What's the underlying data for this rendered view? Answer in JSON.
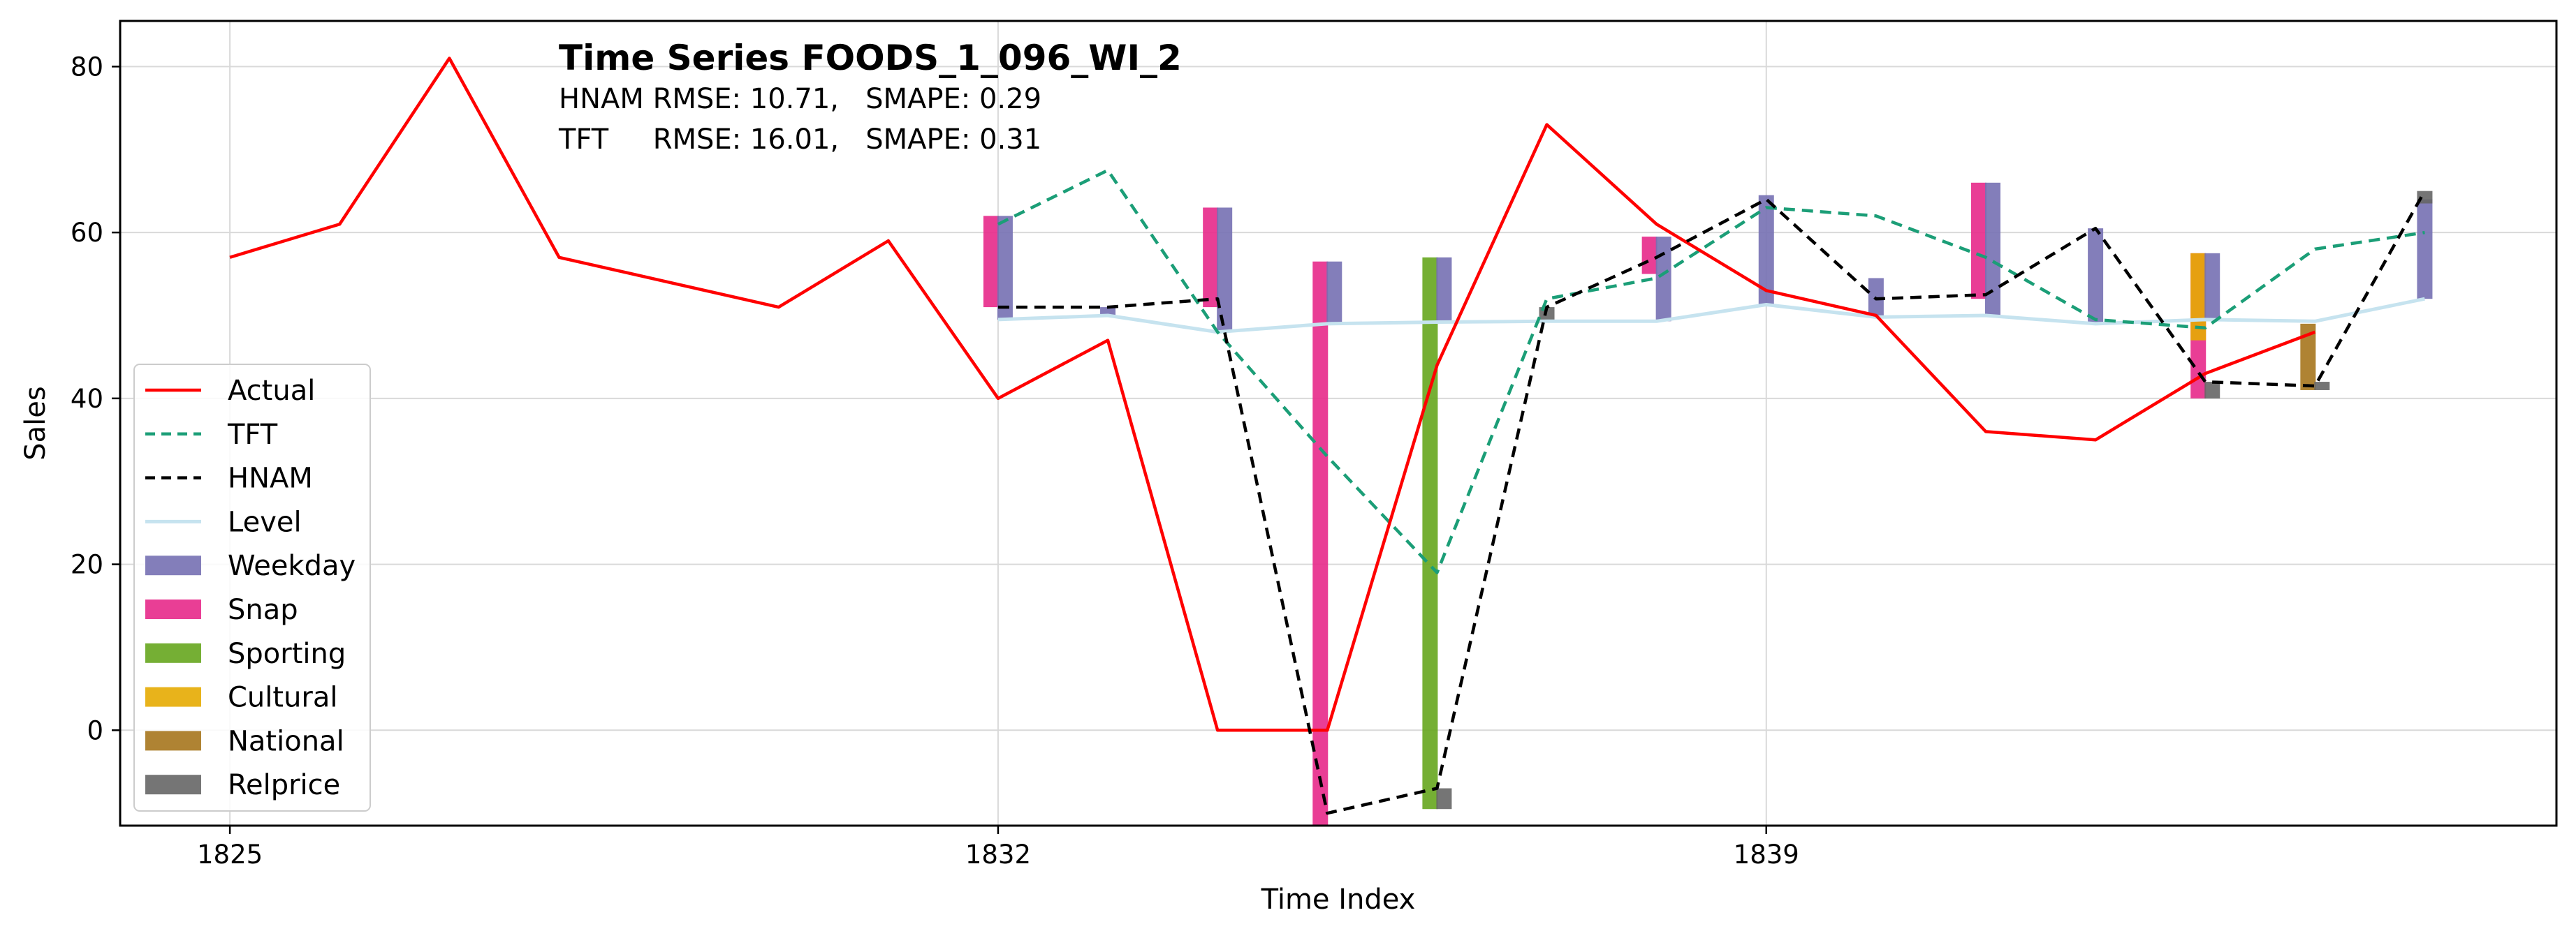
{
  "chart_data": {
    "type": "line",
    "title": "Time Series FOODS_1_096_WI_2",
    "metrics": [
      {
        "model": "HNAM",
        "text": "HNAM RMSE: 10.71,   SMAPE: 0.29"
      },
      {
        "model": "TFT",
        "text": "TFT     RMSE: 16.01,   SMAPE: 0.31"
      }
    ],
    "xlabel": "Time Index",
    "ylabel": "Sales",
    "xlim": [
      1824,
      1846.2
    ],
    "ylim": [
      -11.5,
      85.5
    ],
    "x_ticks": [
      1825,
      1832,
      1839
    ],
    "y_ticks": [
      0,
      20,
      40,
      60,
      80
    ],
    "grid": true,
    "legend_position": "lower-left",
    "series": [
      {
        "name": "Actual",
        "style": "solid",
        "color": "#ff0000",
        "x": [
          1825,
          1826,
          1827,
          1828,
          1829,
          1830,
          1831,
          1832,
          1833,
          1834,
          1835,
          1836,
          1837,
          1838,
          1839,
          1840,
          1841,
          1842,
          1843,
          1844,
          1845
        ],
        "values": [
          57,
          61,
          81,
          57,
          54,
          51,
          59,
          40,
          47,
          0,
          0,
          44,
          73,
          61,
          53,
          50,
          36,
          35,
          43,
          48,
          null
        ]
      },
      {
        "name": "TFT",
        "style": "dashed",
        "color": "#1b9e77",
        "x": [
          1832,
          1833,
          1834,
          1835,
          1836,
          1837,
          1838,
          1839,
          1840,
          1841,
          1842,
          1843,
          1844,
          1845
        ],
        "values": [
          61,
          67.5,
          48,
          33,
          19,
          52,
          54.5,
          63,
          62,
          57,
          49.5,
          48.5,
          58,
          60
        ]
      },
      {
        "name": "HNAM",
        "style": "dashed",
        "color": "#000000",
        "x": [
          1832,
          1833,
          1834,
          1835,
          1836,
          1837,
          1838,
          1839,
          1840,
          1841,
          1842,
          1843,
          1844,
          1845
        ],
        "values": [
          51,
          51,
          52,
          -10,
          -7,
          51,
          57,
          64,
          52,
          52.5,
          60.5,
          42,
          41.5,
          65
        ]
      },
      {
        "name": "Level",
        "style": "solid",
        "color": "#c6e3ef",
        "x": [
          1832,
          1833,
          1834,
          1835,
          1836,
          1837,
          1838,
          1839,
          1840,
          1841,
          1842,
          1843,
          1844,
          1845
        ],
        "values": [
          49.5,
          50,
          48,
          49,
          49.2,
          49.3,
          49.3,
          51.3,
          49.8,
          50,
          49,
          49.5,
          49.3,
          52
        ]
      }
    ],
    "components": {
      "colors": {
        "Weekday": "#7570b3",
        "Snap": "#e7298a",
        "Sporting": "#66a61e",
        "Cultural": "#e6ab02",
        "National": "#a6761d",
        "Relprice": "#666666"
      },
      "bars": [
        {
          "x": 1832,
          "name": "Snap",
          "from": 51,
          "to": 62
        },
        {
          "x": 1832,
          "name": "Weekday",
          "from": 49.5,
          "to": 62
        },
        {
          "x": 1833,
          "name": "Weekday",
          "from": 50,
          "to": 51
        },
        {
          "x": 1834,
          "name": "Snap",
          "from": 51,
          "to": 63
        },
        {
          "x": 1834,
          "name": "Weekday",
          "from": 48,
          "to": 63
        },
        {
          "x": 1835,
          "name": "Snap",
          "from": -11.5,
          "to": 56.5
        },
        {
          "x": 1835,
          "name": "Weekday",
          "from": 49,
          "to": 56.5
        },
        {
          "x": 1836,
          "name": "Sporting",
          "from": -9.5,
          "to": 57
        },
        {
          "x": 1836,
          "name": "Weekday",
          "from": 49.2,
          "to": 57
        },
        {
          "x": 1836,
          "name": "Relprice",
          "from": -9.5,
          "to": -7
        },
        {
          "x": 1837,
          "name": "Relprice",
          "from": 49.3,
          "to": 51
        },
        {
          "x": 1838,
          "name": "Snap",
          "from": 55,
          "to": 59.5
        },
        {
          "x": 1838,
          "name": "Weekday",
          "from": 49.3,
          "to": 59.5
        },
        {
          "x": 1839,
          "name": "Weekday",
          "from": 51.3,
          "to": 64.5
        },
        {
          "x": 1840,
          "name": "Weekday",
          "from": 49.8,
          "to": 54.5
        },
        {
          "x": 1841,
          "name": "Snap",
          "from": 52,
          "to": 66
        },
        {
          "x": 1841,
          "name": "Weekday",
          "from": 50,
          "to": 66
        },
        {
          "x": 1842,
          "name": "Weekday",
          "from": 49,
          "to": 60.5
        },
        {
          "x": 1843,
          "name": "Snap",
          "from": 40,
          "to": 57.5
        },
        {
          "x": 1843,
          "name": "Cultural",
          "from": 47,
          "to": 57.5
        },
        {
          "x": 1843,
          "name": "Weekday",
          "from": 49.5,
          "to": 57.5
        },
        {
          "x": 1843,
          "name": "Relprice",
          "from": 40,
          "to": 42
        },
        {
          "x": 1844,
          "name": "National",
          "from": 41,
          "to": 49
        },
        {
          "x": 1844,
          "name": "Relprice",
          "from": 41,
          "to": 42
        },
        {
          "x": 1845,
          "name": "Weekday",
          "from": 52,
          "to": 64
        },
        {
          "x": 1845,
          "name": "Relprice",
          "from": 63.5,
          "to": 65
        }
      ]
    },
    "legend": [
      "Actual",
      "TFT",
      "HNAM",
      "Level",
      "Weekday",
      "Snap",
      "Sporting",
      "Cultural",
      "National",
      "Relprice"
    ]
  }
}
